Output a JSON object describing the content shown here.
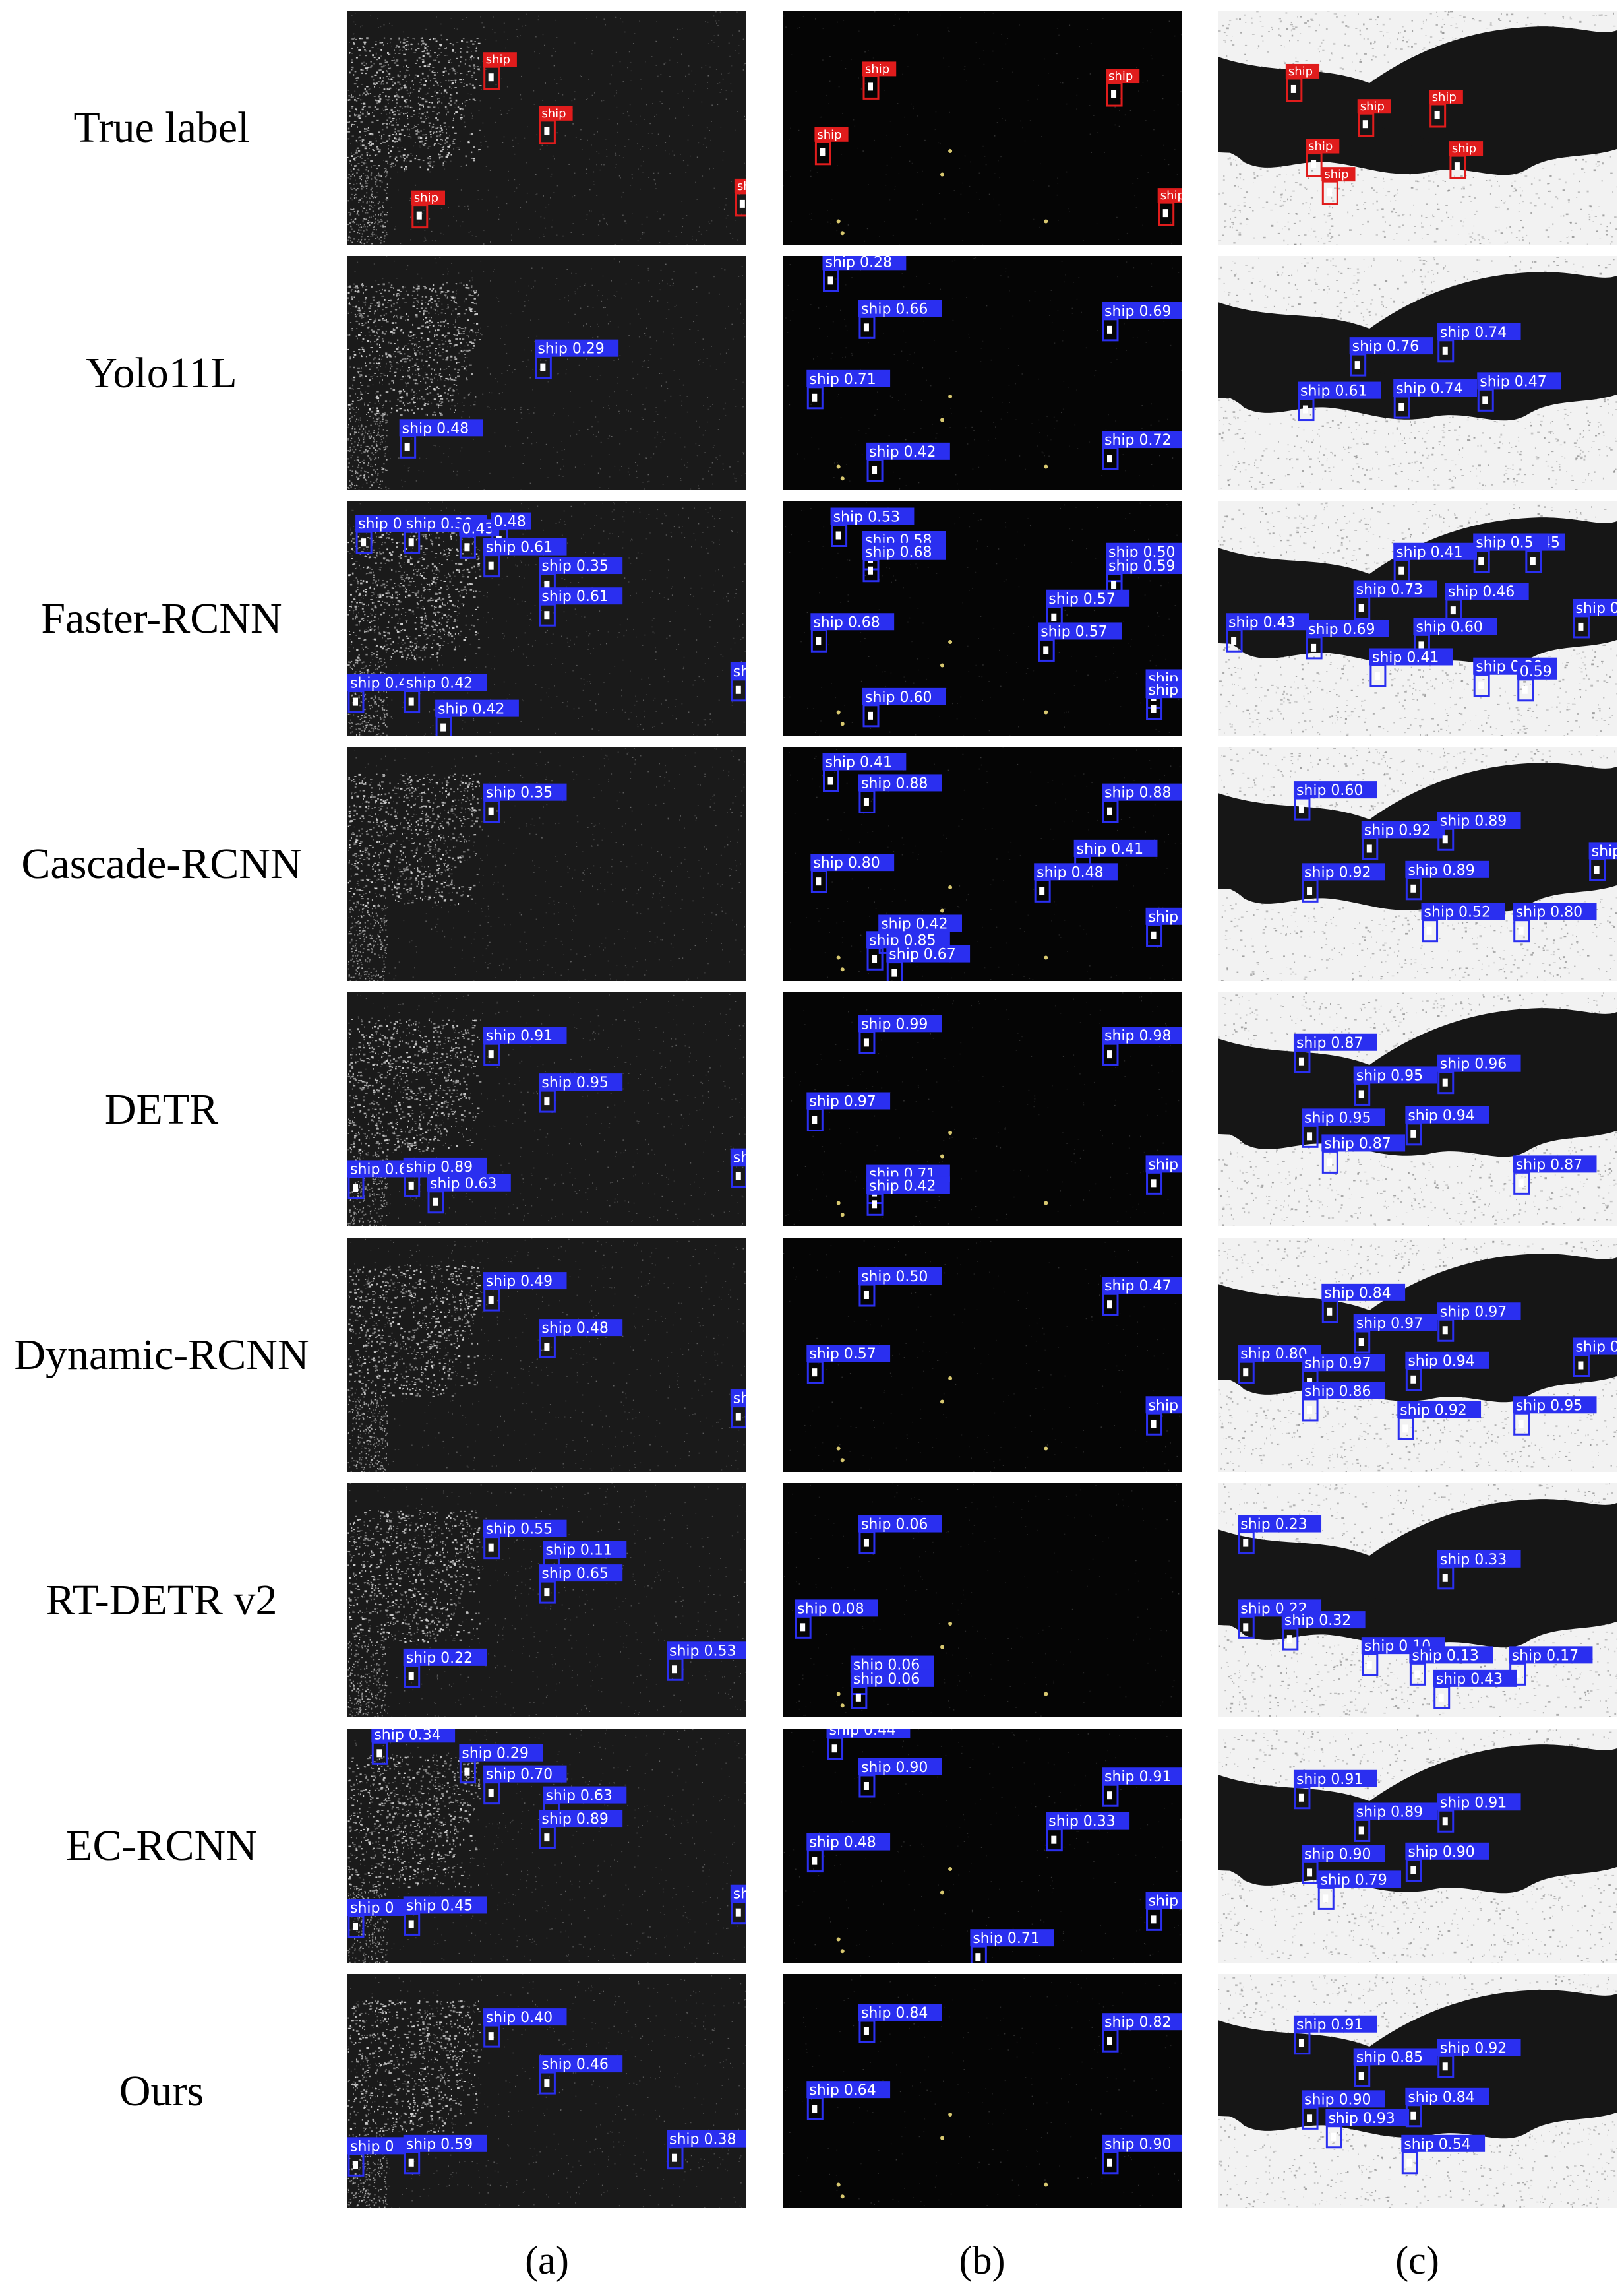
{
  "columns": [
    "(a)",
    "(b)",
    "(c)"
  ],
  "rows": [
    {
      "label": "True label",
      "gt": true,
      "panels": [
        [
          [
            "ship",
            0.34,
            0.24
          ],
          [
            "ship",
            0.48,
            0.47
          ],
          [
            "ship",
            0.16,
            0.83
          ],
          [
            "ship",
            0.97,
            0.78
          ]
        ],
        [
          [
            "ship",
            0.2,
            0.28
          ],
          [
            "ship",
            0.81,
            0.31
          ],
          [
            "ship",
            0.08,
            0.56
          ],
          [
            "ship",
            0.94,
            0.82
          ]
        ],
        [
          [
            "ship",
            0.17,
            0.29
          ],
          [
            "ship",
            0.35,
            0.44
          ],
          [
            "ship",
            0.53,
            0.4
          ],
          [
            "ship",
            0.58,
            0.62
          ],
          [
            "ship",
            0.22,
            0.61
          ],
          [
            "ship",
            0.26,
            0.73
          ]
        ]
      ]
    },
    {
      "label": "Yolo11L",
      "gt": false,
      "panels": [
        [
          [
            "ship 0.29",
            0.47,
            0.43
          ],
          [
            "ship 0.48",
            0.13,
            0.77
          ]
        ],
        [
          [
            "ship 0.28",
            0.1,
            0.06
          ],
          [
            "ship 0.66",
            0.19,
            0.26
          ],
          [
            "ship 0.69",
            0.8,
            0.27
          ],
          [
            "ship 0.71",
            0.06,
            0.56
          ],
          [
            "ship 0.42",
            0.21,
            0.87
          ],
          [
            "ship 0.72",
            0.8,
            0.82
          ]
        ],
        [
          [
            "ship 0.76",
            0.33,
            0.42
          ],
          [
            "ship 0.74",
            0.55,
            0.36
          ],
          [
            "ship 0.61",
            0.2,
            0.61
          ],
          [
            "ship 0.74",
            0.44,
            0.6
          ],
          [
            "ship 0.47",
            0.65,
            0.57
          ]
        ]
      ]
    },
    {
      "label": "Faster-RCNN",
      "gt": false,
      "panels": [
        [
          [
            "ship 0.38",
            0.02,
            0.13
          ],
          [
            "ship 0.38",
            0.14,
            0.13
          ],
          [
            "0.43",
            0.28,
            0.15
          ],
          [
            "0.48",
            0.36,
            0.12
          ],
          [
            "ship 0.61",
            0.34,
            0.23
          ],
          [
            "ship 0.35",
            0.48,
            0.31
          ],
          [
            "ship 0.61",
            0.48,
            0.44
          ],
          [
            "ship 0.4",
            0.0,
            0.81
          ],
          [
            "ship 0.42",
            0.14,
            0.81
          ],
          [
            "ship 0.42",
            0.22,
            0.92
          ],
          [
            "shi",
            0.96,
            0.76
          ]
        ],
        [
          [
            "ship 0.53",
            0.12,
            0.1
          ],
          [
            "ship 0.58",
            0.2,
            0.2
          ],
          [
            "ship 0.68",
            0.2,
            0.25
          ],
          [
            "ship 0.50",
            0.81,
            0.25
          ],
          [
            "ship 0.59",
            0.81,
            0.31
          ],
          [
            "ship 0.57",
            0.66,
            0.45
          ],
          [
            "ship 0.68",
            0.07,
            0.55
          ],
          [
            "ship 0.57",
            0.64,
            0.59
          ],
          [
            "ship 0.60",
            0.2,
            0.87
          ],
          [
            "ship",
            0.91,
            0.79
          ],
          [
            "ship",
            0.91,
            0.84
          ]
        ],
        [
          [
            "ship 0.41",
            0.44,
            0.25
          ],
          [
            "ship 0.73",
            0.34,
            0.41
          ],
          [
            "ship 0.46",
            0.57,
            0.42
          ],
          [
            "ship 0.43",
            0.02,
            0.55
          ],
          [
            "ship 0.69",
            0.22,
            0.58
          ],
          [
            "ship 0.60",
            0.49,
            0.57
          ],
          [
            "ship 0.41",
            0.38,
            0.7
          ],
          [
            "ship 0.39",
            0.64,
            0.74
          ],
          [
            "0.59",
            0.75,
            0.76
          ],
          [
            "ship 0.5",
            0.89,
            0.49
          ],
          [
            "0.45",
            0.77,
            0.21
          ],
          [
            "ship 0.5",
            0.64,
            0.21
          ]
        ]
      ]
    },
    {
      "label": "Cascade-RCNN",
      "gt": false,
      "panels": [
        [
          [
            "ship 0.35",
            0.34,
            0.23
          ]
        ],
        [
          [
            "ship 0.41",
            0.1,
            0.1
          ],
          [
            "ship 0.88",
            0.19,
            0.19
          ],
          [
            "ship 0.88",
            0.8,
            0.23
          ],
          [
            "ship 0.41",
            0.73,
            0.47
          ],
          [
            "ship 0.80",
            0.07,
            0.53
          ],
          [
            "ship 0.48",
            0.63,
            0.57
          ],
          [
            "ship 0.42",
            0.24,
            0.79
          ],
          [
            "ship 0.85",
            0.21,
            0.86
          ],
          [
            "ship 0.67",
            0.26,
            0.92
          ],
          [
            "ship",
            0.91,
            0.76
          ]
        ],
        [
          [
            "ship 0.60",
            0.19,
            0.22
          ],
          [
            "ship 0.92",
            0.36,
            0.39
          ],
          [
            "ship 0.89",
            0.55,
            0.35
          ],
          [
            "ship 0.92",
            0.21,
            0.57
          ],
          [
            "ship 0.89",
            0.47,
            0.56
          ],
          [
            "ship 0.52",
            0.51,
            0.74
          ],
          [
            "ship 0.80",
            0.74,
            0.74
          ],
          [
            "ship 0.",
            0.93,
            0.48
          ]
        ]
      ]
    },
    {
      "label": "DETR",
      "gt": false,
      "panels": [
        [
          [
            "ship 0.91",
            0.34,
            0.22
          ],
          [
            "ship 0.95",
            0.48,
            0.42
          ],
          [
            "ship 0.64",
            0.0,
            0.79
          ],
          [
            "ship 0.89",
            0.14,
            0.78
          ],
          [
            "ship 0.63",
            0.2,
            0.85
          ],
          [
            "ship",
            0.96,
            0.74
          ]
        ],
        [
          [
            "ship 0.99",
            0.19,
            0.17
          ],
          [
            "ship 0.98",
            0.8,
            0.22
          ],
          [
            "ship 0.97",
            0.06,
            0.5
          ],
          [
            "ship 0.71",
            0.21,
            0.81
          ],
          [
            "ship 0.42",
            0.21,
            0.86
          ],
          [
            "ship",
            0.91,
            0.77
          ]
        ],
        [
          [
            "ship 0.87",
            0.19,
            0.25
          ],
          [
            "ship 0.95",
            0.34,
            0.39
          ],
          [
            "ship 0.96",
            0.55,
            0.34
          ],
          [
            "ship 0.95",
            0.21,
            0.57
          ],
          [
            "ship 0.94",
            0.47,
            0.56
          ],
          [
            "ship 0.87",
            0.26,
            0.68
          ],
          [
            "ship 0.87",
            0.74,
            0.77
          ]
        ]
      ]
    },
    {
      "label": "Dynamic-RCNN",
      "gt": false,
      "panels": [
        [
          [
            "ship 0.49",
            0.34,
            0.22
          ],
          [
            "ship 0.48",
            0.48,
            0.42
          ],
          [
            "shi",
            0.96,
            0.72
          ]
        ],
        [
          [
            "ship 0.50",
            0.19,
            0.2
          ],
          [
            "ship 0.47",
            0.8,
            0.24
          ],
          [
            "ship 0.57",
            0.06,
            0.53
          ],
          [
            "ship",
            0.91,
            0.75
          ]
        ],
        [
          [
            "ship 0.84",
            0.26,
            0.27
          ],
          [
            "ship 0.97",
            0.34,
            0.4
          ],
          [
            "ship 0.97",
            0.55,
            0.35
          ],
          [
            "ship 0.80",
            0.05,
            0.53
          ],
          [
            "ship 0.97",
            0.21,
            0.57
          ],
          [
            "ship 0.94",
            0.47,
            0.56
          ],
          [
            "ship 0.86",
            0.21,
            0.69
          ],
          [
            "ship 0.92",
            0.45,
            0.77
          ],
          [
            "ship 0.95",
            0.74,
            0.75
          ],
          [
            "ship 0.9",
            0.89,
            0.5
          ]
        ]
      ]
    },
    {
      "label": "RT-DETR v2",
      "gt": false,
      "panels": [
        [
          [
            "ship 0.55",
            0.34,
            0.23
          ],
          [
            "ship 0.11",
            0.49,
            0.32
          ],
          [
            "ship 0.65",
            0.48,
            0.42
          ],
          [
            "ship 0.22",
            0.14,
            0.78
          ],
          [
            "ship 0.53",
            0.8,
            0.75
          ]
        ],
        [
          [
            "ship 0.06",
            0.19,
            0.21
          ],
          [
            "ship 0.08",
            0.03,
            0.57
          ],
          [
            "ship 0.06",
            0.17,
            0.81
          ],
          [
            "ship 0.06",
            0.17,
            0.87
          ]
        ],
        [
          [
            "ship 0.23",
            0.05,
            0.21
          ],
          [
            "ship 0.33",
            0.55,
            0.36
          ],
          [
            "ship 0.22",
            0.05,
            0.57
          ],
          [
            "ship 0.32",
            0.16,
            0.62
          ],
          [
            "ship 0.10",
            0.36,
            0.73
          ],
          [
            "ship 0.13",
            0.48,
            0.77
          ],
          [
            "ship 0.17",
            0.73,
            0.77
          ],
          [
            "ship 0.43",
            0.54,
            0.87
          ]
        ]
      ]
    },
    {
      "label": "EC-RCNN",
      "gt": false,
      "panels": [
        [
          [
            "ship 0.34",
            0.06,
            0.06
          ],
          [
            "ship 0.29",
            0.28,
            0.14
          ],
          [
            "ship 0.70",
            0.34,
            0.23
          ],
          [
            "ship 0.63",
            0.49,
            0.32
          ],
          [
            "ship 0.89",
            0.48,
            0.42
          ],
          [
            "ship 0",
            0.0,
            0.8
          ],
          [
            "ship 0.45",
            0.14,
            0.79
          ],
          [
            "sh",
            0.96,
            0.74
          ]
        ],
        [
          [
            "ship 0.44",
            0.11,
            0.04
          ],
          [
            "ship 0.90",
            0.19,
            0.2
          ],
          [
            "ship 0.91",
            0.8,
            0.24
          ],
          [
            "ship 0.33",
            0.66,
            0.43
          ],
          [
            "ship 0.48",
            0.06,
            0.52
          ],
          [
            "ship 0.71",
            0.47,
            0.93
          ],
          [
            "ship",
            0.91,
            0.77
          ]
        ],
        [
          [
            "ship 0.91",
            0.19,
            0.25
          ],
          [
            "ship 0.89",
            0.34,
            0.39
          ],
          [
            "ship 0.91",
            0.55,
            0.35
          ],
          [
            "ship 0.90",
            0.21,
            0.57
          ],
          [
            "ship 0.90",
            0.47,
            0.56
          ],
          [
            "ship 0.79",
            0.25,
            0.68
          ]
        ]
      ]
    },
    {
      "label": "Ours",
      "gt": false,
      "panels": [
        [
          [
            "ship 0.40",
            0.34,
            0.22
          ],
          [
            "ship 0.46",
            0.48,
            0.42
          ],
          [
            "ship 0",
            0.0,
            0.77
          ],
          [
            "ship 0.59",
            0.14,
            0.76
          ],
          [
            "ship 0.38",
            0.8,
            0.74
          ]
        ],
        [
          [
            "ship 0.84",
            0.19,
            0.2
          ],
          [
            "ship 0.82",
            0.8,
            0.24
          ],
          [
            "ship 0.64",
            0.06,
            0.53
          ],
          [
            "ship 0.90",
            0.8,
            0.76
          ]
        ],
        [
          [
            "ship 0.91",
            0.19,
            0.25
          ],
          [
            "ship 0.85",
            0.34,
            0.39
          ],
          [
            "ship 0.92",
            0.55,
            0.35
          ],
          [
            "ship 0.90",
            0.21,
            0.57
          ],
          [
            "ship 0.84",
            0.47,
            0.56
          ],
          [
            "ship 0.93",
            0.27,
            0.65
          ],
          [
            "ship 0.54",
            0.46,
            0.76
          ]
        ]
      ]
    }
  ],
  "colors": {
    "detection": "#2a2ff0",
    "ground_truth": "#e01c1c"
  }
}
